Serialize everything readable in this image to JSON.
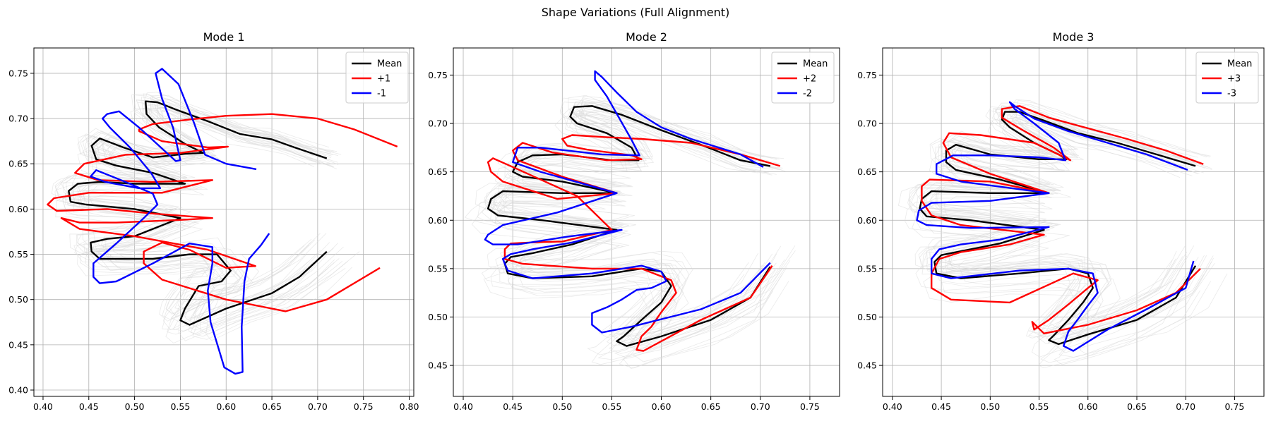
{
  "figure": {
    "suptitle": "Shape Variations (Full Alignment)"
  },
  "colors": {
    "mean": "#000000",
    "plus": "#ff0000",
    "minus": "#0000ff",
    "background_shapes": "#d9d9d9",
    "grid": "#b0b0b0"
  },
  "chart_data": [
    {
      "type": "line",
      "title": "Mode 1",
      "xlim": [
        0.39,
        0.805
      ],
      "ylim": [
        0.393,
        0.778
      ],
      "xticks": [
        0.4,
        0.45,
        0.5,
        0.55,
        0.6,
        0.65,
        0.7,
        0.75,
        0.8
      ],
      "xtick_labels": [
        "0.40",
        "0.45",
        "0.50",
        "0.55",
        "0.60",
        "0.65",
        "0.70",
        "0.75",
        "0.80"
      ],
      "yticks": [
        0.4,
        0.45,
        0.5,
        0.55,
        0.6,
        0.65,
        0.7,
        0.75
      ],
      "ytick_labels": [
        "0.40",
        "0.45",
        "0.50",
        "0.55",
        "0.60",
        "0.65",
        "0.70",
        "0.75"
      ],
      "grid": true,
      "legend_position": "top-right",
      "series": [
        {
          "name": "Mean",
          "role": "mean",
          "x": [
            0.71,
            0.675,
            0.65,
            0.615,
            0.58,
            0.545,
            0.525,
            0.512,
            0.513,
            0.527,
            0.555,
            0.575,
            0.555,
            0.52,
            0.488,
            0.462,
            0.453,
            0.458,
            0.48,
            0.52,
            0.555,
            0.5,
            0.462,
            0.438,
            0.428,
            0.43,
            0.447,
            0.5,
            0.55,
            0.5,
            0.47,
            0.452,
            0.453,
            0.462,
            0.52,
            0.56,
            0.59,
            0.605,
            0.595,
            0.57,
            0.555,
            0.55,
            0.56,
            0.6,
            0.65,
            0.68,
            0.71
          ],
          "y": [
            0.656,
            0.668,
            0.677,
            0.683,
            0.697,
            0.71,
            0.718,
            0.719,
            0.705,
            0.69,
            0.672,
            0.662,
            0.661,
            0.657,
            0.668,
            0.678,
            0.67,
            0.655,
            0.648,
            0.64,
            0.628,
            0.628,
            0.63,
            0.628,
            0.62,
            0.608,
            0.605,
            0.6,
            0.59,
            0.57,
            0.567,
            0.563,
            0.553,
            0.545,
            0.545,
            0.55,
            0.55,
            0.532,
            0.52,
            0.515,
            0.49,
            0.477,
            0.472,
            0.49,
            0.507,
            0.525,
            0.553
          ]
        },
        {
          "name": "+1",
          "role": "plus",
          "x": [
            0.787,
            0.74,
            0.7,
            0.65,
            0.6,
            0.56,
            0.52,
            0.505,
            0.505,
            0.53,
            0.58,
            0.602,
            0.55,
            0.49,
            0.445,
            0.435,
            0.46,
            0.52,
            0.585,
            0.53,
            0.45,
            0.412,
            0.405,
            0.415,
            0.47,
            0.52,
            0.585,
            0.55,
            0.48,
            0.44,
            0.42,
            0.44,
            0.5,
            0.58,
            0.632,
            0.6,
            0.56,
            0.53,
            0.51,
            0.51,
            0.53,
            0.6,
            0.665,
            0.71,
            0.768
          ],
          "y": [
            0.669,
            0.688,
            0.7,
            0.705,
            0.703,
            0.699,
            0.694,
            0.688,
            0.686,
            0.675,
            0.668,
            0.669,
            0.662,
            0.66,
            0.65,
            0.64,
            0.632,
            0.63,
            0.632,
            0.618,
            0.618,
            0.612,
            0.605,
            0.598,
            0.6,
            0.595,
            0.59,
            0.588,
            0.585,
            0.585,
            0.59,
            0.578,
            0.57,
            0.555,
            0.537,
            0.535,
            0.555,
            0.563,
            0.553,
            0.54,
            0.522,
            0.5,
            0.487,
            0.5,
            0.535
          ]
        },
        {
          "name": "-1",
          "role": "minus",
          "x": [
            0.633,
            0.6,
            0.577,
            0.565,
            0.548,
            0.53,
            0.523,
            0.53,
            0.542,
            0.55,
            0.545,
            0.532,
            0.505,
            0.483,
            0.47,
            0.465,
            0.473,
            0.495,
            0.518,
            0.528,
            0.505,
            0.468,
            0.452,
            0.458,
            0.49,
            0.52,
            0.525,
            0.51,
            0.48,
            0.455,
            0.455,
            0.462,
            0.48,
            0.52,
            0.56,
            0.585,
            0.585,
            0.58,
            0.583,
            0.592,
            0.598,
            0.61,
            0.618,
            0.617,
            0.62,
            0.625,
            0.638,
            0.647
          ],
          "y": [
            0.644,
            0.65,
            0.66,
            0.695,
            0.738,
            0.755,
            0.75,
            0.722,
            0.69,
            0.654,
            0.653,
            0.665,
            0.69,
            0.708,
            0.705,
            0.7,
            0.69,
            0.668,
            0.64,
            0.623,
            0.623,
            0.63,
            0.636,
            0.643,
            0.63,
            0.617,
            0.605,
            0.59,
            0.562,
            0.54,
            0.525,
            0.518,
            0.52,
            0.54,
            0.562,
            0.558,
            0.54,
            0.51,
            0.475,
            0.445,
            0.425,
            0.418,
            0.42,
            0.47,
            0.52,
            0.545,
            0.56,
            0.573
          ]
        }
      ]
    },
    {
      "type": "line",
      "title": "Mode 2",
      "xlim": [
        0.39,
        0.78
      ],
      "ylim": [
        0.418,
        0.778
      ],
      "xticks": [
        0.4,
        0.45,
        0.5,
        0.55,
        0.6,
        0.65,
        0.7,
        0.75
      ],
      "xtick_labels": [
        "0.40",
        "0.45",
        "0.50",
        "0.55",
        "0.60",
        "0.65",
        "0.70",
        "0.75"
      ],
      "yticks": [
        0.45,
        0.5,
        0.55,
        0.6,
        0.65,
        0.7,
        0.75
      ],
      "ytick_labels": [
        "0.45",
        "0.50",
        "0.55",
        "0.60",
        "0.65",
        "0.70",
        "0.75"
      ],
      "grid": true,
      "legend_position": "top-right",
      "series": [
        {
          "name": "Mean",
          "role": "mean",
          "x": [
            0.71,
            0.68,
            0.64,
            0.6,
            0.56,
            0.53,
            0.512,
            0.508,
            0.515,
            0.545,
            0.57,
            0.577,
            0.55,
            0.5,
            0.47,
            0.455,
            0.45,
            0.46,
            0.5,
            0.555,
            0.5,
            0.44,
            0.428,
            0.425,
            0.435,
            0.48,
            0.555,
            0.51,
            0.47,
            0.448,
            0.442,
            0.445,
            0.47,
            0.53,
            0.58,
            0.6,
            0.61,
            0.6,
            0.58,
            0.562,
            0.555,
            0.565,
            0.6,
            0.65,
            0.69,
            0.71
          ],
          "y": [
            0.656,
            0.662,
            0.678,
            0.693,
            0.709,
            0.718,
            0.717,
            0.707,
            0.7,
            0.69,
            0.675,
            0.662,
            0.662,
            0.668,
            0.667,
            0.66,
            0.65,
            0.645,
            0.64,
            0.628,
            0.628,
            0.63,
            0.622,
            0.612,
            0.605,
            0.6,
            0.59,
            0.575,
            0.566,
            0.562,
            0.555,
            0.545,
            0.54,
            0.542,
            0.55,
            0.547,
            0.532,
            0.515,
            0.497,
            0.48,
            0.475,
            0.47,
            0.48,
            0.497,
            0.52,
            0.552
          ]
        },
        {
          "name": "+2",
          "role": "plus",
          "x": [
            0.72,
            0.68,
            0.63,
            0.58,
            0.54,
            0.51,
            0.5,
            0.505,
            0.525,
            0.57,
            0.58,
            0.545,
            0.49,
            0.46,
            0.45,
            0.455,
            0.5,
            0.555,
            0.495,
            0.44,
            0.428,
            0.425,
            0.43,
            0.45,
            0.515,
            0.55,
            0.5,
            0.468,
            0.448,
            0.442,
            0.442,
            0.46,
            0.53,
            0.58,
            0.61,
            0.615,
            0.6,
            0.59,
            0.58,
            0.575,
            0.582,
            0.6,
            0.64,
            0.69,
            0.712
          ],
          "y": [
            0.656,
            0.668,
            0.68,
            0.684,
            0.686,
            0.688,
            0.684,
            0.677,
            0.673,
            0.667,
            0.663,
            0.662,
            0.67,
            0.68,
            0.672,
            0.662,
            0.645,
            0.628,
            0.622,
            0.64,
            0.65,
            0.66,
            0.664,
            0.655,
            0.625,
            0.59,
            0.578,
            0.577,
            0.576,
            0.57,
            0.56,
            0.555,
            0.55,
            0.55,
            0.538,
            0.525,
            0.505,
            0.49,
            0.48,
            0.466,
            0.465,
            0.475,
            0.497,
            0.52,
            0.553
          ]
        },
        {
          "name": "-2",
          "role": "minus",
          "x": [
            0.703,
            0.68,
            0.63,
            0.6,
            0.575,
            0.555,
            0.54,
            0.533,
            0.533,
            0.545,
            0.57,
            0.578,
            0.54,
            0.478,
            0.455,
            0.45,
            0.478,
            0.555,
            0.495,
            0.44,
            0.425,
            0.422,
            0.43,
            0.455,
            0.505,
            0.56,
            0.51,
            0.47,
            0.448,
            0.44,
            0.445,
            0.47,
            0.53,
            0.58,
            0.6,
            0.605,
            0.59,
            0.575,
            0.56,
            0.545,
            0.53,
            0.53,
            0.54,
            0.57,
            0.64,
            0.68,
            0.71
          ],
          "y": [
            0.655,
            0.668,
            0.684,
            0.696,
            0.712,
            0.732,
            0.748,
            0.754,
            0.745,
            0.728,
            0.683,
            0.667,
            0.668,
            0.675,
            0.675,
            0.66,
            0.65,
            0.628,
            0.608,
            0.595,
            0.585,
            0.58,
            0.575,
            0.575,
            0.583,
            0.59,
            0.577,
            0.57,
            0.565,
            0.56,
            0.548,
            0.54,
            0.545,
            0.553,
            0.547,
            0.537,
            0.53,
            0.528,
            0.518,
            0.51,
            0.504,
            0.492,
            0.484,
            0.49,
            0.508,
            0.525,
            0.556
          ]
        }
      ]
    },
    {
      "type": "line",
      "title": "Mode 3",
      "xlim": [
        0.39,
        0.78
      ],
      "ylim": [
        0.418,
        0.778
      ],
      "xticks": [
        0.4,
        0.45,
        0.5,
        0.55,
        0.6,
        0.65,
        0.7,
        0.75
      ],
      "xtick_labels": [
        "0.40",
        "0.45",
        "0.50",
        "0.55",
        "0.60",
        "0.65",
        "0.70",
        "0.75"
      ],
      "yticks": [
        0.45,
        0.5,
        0.55,
        0.6,
        0.65,
        0.7,
        0.75
      ],
      "ytick_labels": [
        "0.45",
        "0.50",
        "0.55",
        "0.60",
        "0.65",
        "0.70",
        "0.75"
      ],
      "grid": true,
      "legend_position": "top-right",
      "series": [
        {
          "name": "Mean",
          "role": "mean",
          "x": [
            0.71,
            0.67,
            0.63,
            0.59,
            0.555,
            0.53,
            0.515,
            0.512,
            0.52,
            0.545,
            0.57,
            0.578,
            0.55,
            0.5,
            0.465,
            0.455,
            0.455,
            0.465,
            0.51,
            0.56,
            0.5,
            0.44,
            0.43,
            0.428,
            0.435,
            0.48,
            0.555,
            0.51,
            0.47,
            0.45,
            0.443,
            0.445,
            0.47,
            0.53,
            0.58,
            0.6,
            0.605,
            0.595,
            0.58,
            0.566,
            0.56,
            0.57,
            0.6,
            0.65,
            0.69,
            0.71
          ],
          "y": [
            0.656,
            0.668,
            0.68,
            0.69,
            0.703,
            0.712,
            0.712,
            0.704,
            0.696,
            0.68,
            0.668,
            0.663,
            0.663,
            0.668,
            0.678,
            0.672,
            0.66,
            0.652,
            0.642,
            0.628,
            0.628,
            0.63,
            0.622,
            0.612,
            0.604,
            0.6,
            0.59,
            0.576,
            0.568,
            0.564,
            0.557,
            0.545,
            0.54,
            0.545,
            0.55,
            0.545,
            0.53,
            0.515,
            0.497,
            0.482,
            0.476,
            0.472,
            0.482,
            0.497,
            0.52,
            0.553
          ]
        },
        {
          "name": "+3",
          "role": "plus",
          "x": [
            0.718,
            0.68,
            0.64,
            0.6,
            0.56,
            0.53,
            0.512,
            0.512,
            0.53,
            0.565,
            0.582,
            0.545,
            0.49,
            0.458,
            0.452,
            0.46,
            0.5,
            0.56,
            0.5,
            0.438,
            0.43,
            0.43,
            0.44,
            0.47,
            0.555,
            0.52,
            0.47,
            0.448,
            0.44,
            0.44,
            0.46,
            0.52,
            0.585,
            0.61,
            0.6,
            0.58,
            0.56,
            0.545,
            0.543,
            0.555,
            0.6,
            0.65,
            0.69,
            0.715
          ],
          "y": [
            0.658,
            0.672,
            0.684,
            0.695,
            0.706,
            0.718,
            0.715,
            0.706,
            0.695,
            0.675,
            0.662,
            0.68,
            0.688,
            0.69,
            0.68,
            0.665,
            0.648,
            0.628,
            0.64,
            0.642,
            0.635,
            0.62,
            0.605,
            0.595,
            0.585,
            0.575,
            0.567,
            0.56,
            0.545,
            0.53,
            0.518,
            0.515,
            0.545,
            0.538,
            0.53,
            0.513,
            0.497,
            0.487,
            0.495,
            0.483,
            0.492,
            0.507,
            0.525,
            0.55
          ]
        },
        {
          "name": "-3",
          "role": "minus",
          "x": [
            0.702,
            0.66,
            0.62,
            0.58,
            0.545,
            0.525,
            0.52,
            0.525,
            0.545,
            0.57,
            0.577,
            0.55,
            0.5,
            0.462,
            0.445,
            0.445,
            0.47,
            0.56,
            0.5,
            0.44,
            0.427,
            0.425,
            0.435,
            0.48,
            0.56,
            0.51,
            0.47,
            0.448,
            0.44,
            0.44,
            0.46,
            0.53,
            0.58,
            0.605,
            0.61,
            0.6,
            0.59,
            0.58,
            0.575,
            0.585,
            0.62,
            0.66,
            0.7,
            0.708
          ],
          "y": [
            0.652,
            0.668,
            0.68,
            0.692,
            0.705,
            0.718,
            0.722,
            0.715,
            0.7,
            0.68,
            0.662,
            0.665,
            0.667,
            0.667,
            0.658,
            0.648,
            0.64,
            0.628,
            0.62,
            0.618,
            0.61,
            0.6,
            0.595,
            0.592,
            0.593,
            0.58,
            0.575,
            0.57,
            0.56,
            0.545,
            0.54,
            0.548,
            0.55,
            0.545,
            0.525,
            0.512,
            0.498,
            0.485,
            0.47,
            0.465,
            0.487,
            0.508,
            0.53,
            0.558
          ]
        }
      ]
    }
  ]
}
